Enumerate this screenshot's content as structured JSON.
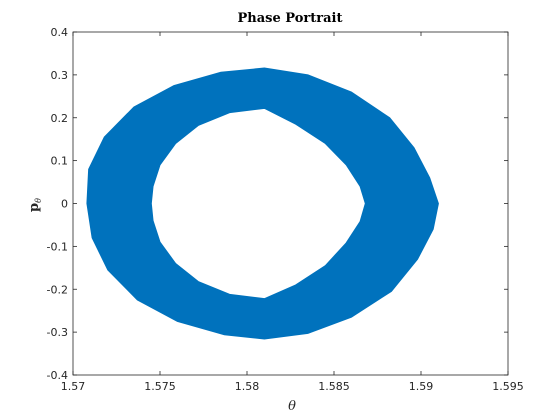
{
  "chart_data": {
    "type": "area",
    "title": "Phase Portrait",
    "xlabel": "θ",
    "ylabel": "p",
    "ylabel_subscript": "θ",
    "xlim": [
      1.57,
      1.595
    ],
    "ylim": [
      -0.4,
      0.4
    ],
    "xticks": [
      "1.57",
      "1.575",
      "1.58",
      "1.585",
      "1.59",
      "1.595"
    ],
    "yticks": [
      "-0.4",
      "-0.3",
      "-0.2",
      "-0.1",
      "0",
      "0.1",
      "0.2",
      "0.3",
      "0.4"
    ],
    "grid": false,
    "color": "#0072BD",
    "series": [
      {
        "center_x": 1.581,
        "center_y": 0.0,
        "outer_x_radius": 0.01,
        "outer_y_radius": 0.315,
        "inner_x_radius": 0.0058,
        "inner_y_radius": 0.222,
        "outer_boundary": [
          [
            1.591,
            0.0
          ],
          [
            1.5905,
            0.06
          ],
          [
            1.5896,
            0.13
          ],
          [
            1.5882,
            0.2
          ],
          [
            1.586,
            0.26
          ],
          [
            1.5835,
            0.3
          ],
          [
            1.581,
            0.316
          ],
          [
            1.5785,
            0.306
          ],
          [
            1.5758,
            0.275
          ],
          [
            1.5735,
            0.225
          ],
          [
            1.5718,
            0.155
          ],
          [
            1.5709,
            0.08
          ],
          [
            1.5708,
            0.0
          ],
          [
            1.5711,
            -0.08
          ],
          [
            1.572,
            -0.155
          ],
          [
            1.5737,
            -0.225
          ],
          [
            1.576,
            -0.275
          ],
          [
            1.5787,
            -0.306
          ],
          [
            1.581,
            -0.316
          ],
          [
            1.5835,
            -0.303
          ],
          [
            1.586,
            -0.265
          ],
          [
            1.5883,
            -0.205
          ],
          [
            1.5898,
            -0.13
          ],
          [
            1.5907,
            -0.06
          ]
        ],
        "inner_boundary": [
          [
            1.5868,
            0.0
          ],
          [
            1.5865,
            0.04
          ],
          [
            1.5857,
            0.09
          ],
          [
            1.5845,
            0.14
          ],
          [
            1.5828,
            0.185
          ],
          [
            1.581,
            0.222
          ],
          [
            1.579,
            0.212
          ],
          [
            1.5772,
            0.182
          ],
          [
            1.5759,
            0.14
          ],
          [
            1.575,
            0.09
          ],
          [
            1.5746,
            0.04
          ],
          [
            1.5745,
            0.0
          ],
          [
            1.5746,
            -0.04
          ],
          [
            1.575,
            -0.09
          ],
          [
            1.5759,
            -0.14
          ],
          [
            1.5772,
            -0.182
          ],
          [
            1.579,
            -0.212
          ],
          [
            1.581,
            -0.222
          ],
          [
            1.5828,
            -0.19
          ],
          [
            1.5845,
            -0.145
          ],
          [
            1.5857,
            -0.092
          ],
          [
            1.5865,
            -0.042
          ]
        ]
      }
    ]
  }
}
